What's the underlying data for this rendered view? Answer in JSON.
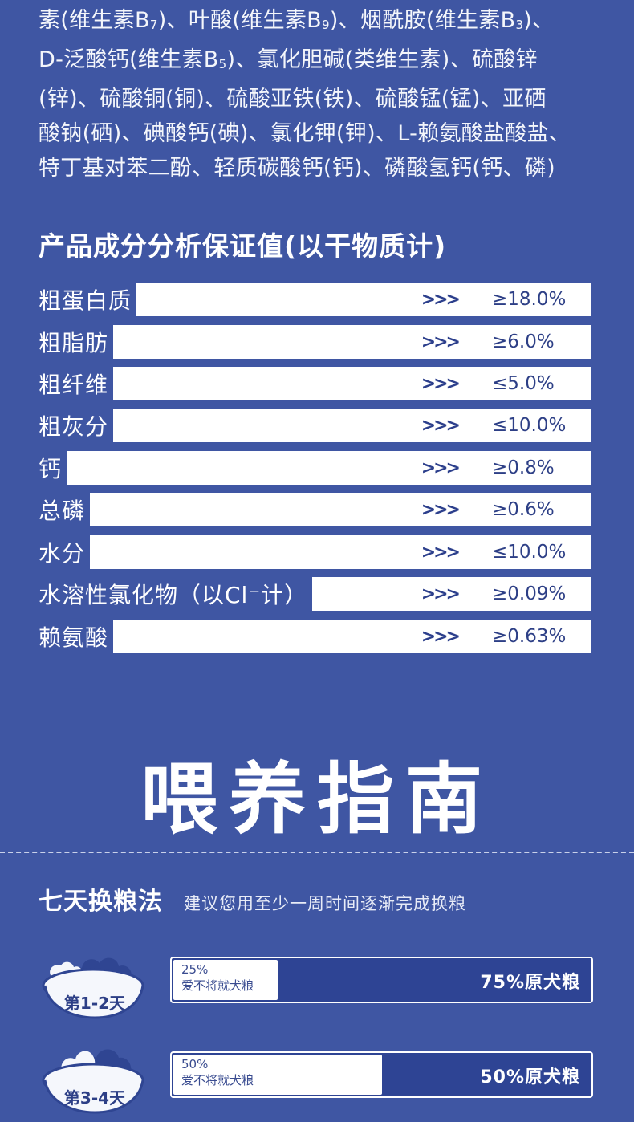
{
  "ingredients_lines": [
    [
      "素(维生素B",
      "7",
      ")、叶酸(维生素B",
      "9",
      ")、烟酰胺(维生素B",
      "3",
      ")、"
    ],
    [
      "D-泛酸钙(维生素B",
      "5",
      ")、氯化胆碱(类维生素)、硫酸锌"
    ],
    [
      "(锌)、硫酸铜(铜)、硫酸亚铁(铁)、硫酸锰(锰)、亚硒"
    ],
    [
      "酸钠(硒)、碘酸钙(碘)、氯化钾(钾)、L-赖氨酸盐酸盐、"
    ],
    [
      "特丁基对苯二酚、轻质碳酸钙(钙)、磷酸氢钙(钙、磷)"
    ]
  ],
  "analysis": {
    "title": "产品成分分析保证值(以干物质计)",
    "arrows": ">>>",
    "rows": [
      {
        "label": "粗蛋白质",
        "value": "≥18.0%"
      },
      {
        "label": "粗脂肪",
        "value": "≥6.0%"
      },
      {
        "label": "粗纤维",
        "value": "≤5.0%"
      },
      {
        "label": "粗灰分",
        "value": "≤10.0%"
      },
      {
        "label": "钙",
        "value": "≥0.8%"
      },
      {
        "label": "总磷",
        "value": "≥0.6%"
      },
      {
        "label": "水分",
        "value": "≤10.0%"
      },
      {
        "label": "水溶性氯化物（以Cl⁻计）",
        "value": "≥0.09%"
      },
      {
        "label": "赖氨酸",
        "value": "≥0.63%"
      }
    ]
  },
  "feeding": {
    "big_title": "喂养指南",
    "method_title": "七天换粮法",
    "method_subtitle": "建议您用至少一周时间逐渐完成换粮",
    "steps": [
      {
        "day_label": "第1-2天",
        "new_percent": "25%",
        "new_label": "爱不将就犬粮",
        "old_label": "75%原犬粮",
        "new_fraction": 0.25
      },
      {
        "day_label": "第3-4天",
        "new_percent": "50%",
        "new_label": "爱不将就犬粮",
        "old_label": "50%原犬粮",
        "new_fraction": 0.5
      }
    ]
  },
  "colors": {
    "background": "#3f56a3",
    "text_dark": "#2d3f86",
    "bar": "#ffffff"
  }
}
